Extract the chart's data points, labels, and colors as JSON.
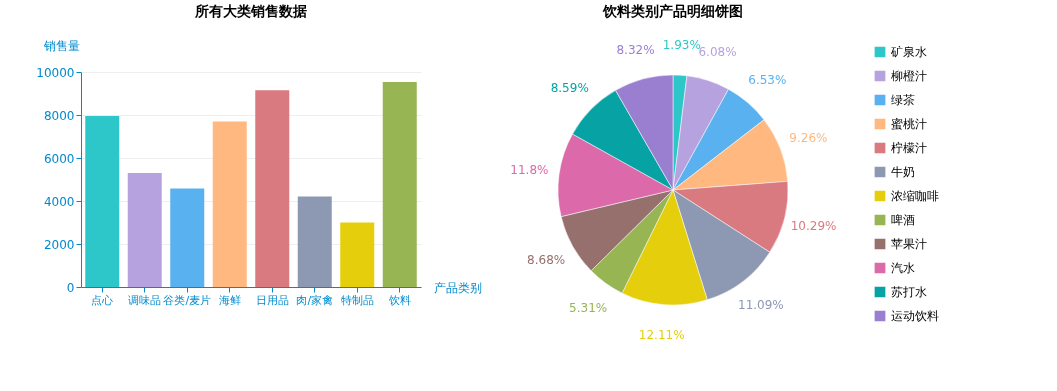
{
  "chart_data": [
    {
      "type": "bar",
      "title": "所有大类销售数据",
      "xlabel": "产品类别",
      "ylabel": "销售量",
      "categories": [
        "点心",
        "调味品",
        "谷类/麦片",
        "海鲜",
        "日用品",
        "肉/家禽",
        "特制品",
        "饮料"
      ],
      "values": [
        7950,
        5300,
        4580,
        7700,
        9150,
        4210,
        3000,
        9540
      ],
      "colors": [
        "#2ec7c9",
        "#b6a2de",
        "#5ab1ef",
        "#ffb980",
        "#d87a80",
        "#8d98b3",
        "#e5cf0d",
        "#97b552"
      ],
      "ylim": [
        0,
        10000
      ],
      "yticks": [
        0,
        2000,
        4000,
        6000,
        8000,
        10000
      ],
      "grid": "y"
    },
    {
      "type": "pie",
      "title": "饮料类别产品明细饼图",
      "categories": [
        "矿泉水",
        "柳橙汁",
        "绿茶",
        "蜜桃汁",
        "柠檬汁",
        "牛奶",
        "浓缩咖啡",
        "啤酒",
        "苹果汁",
        "汽水",
        "苏打水",
        "运动饮料"
      ],
      "values": [
        1.93,
        6.08,
        6.53,
        9.26,
        10.29,
        11.09,
        12.11,
        5.31,
        8.68,
        11.8,
        8.59,
        8.32
      ],
      "colors": [
        "#2ec7c9",
        "#b6a2de",
        "#5ab1ef",
        "#ffb980",
        "#d87a80",
        "#8d98b3",
        "#e5cf0d",
        "#97b552",
        "#95706d",
        "#dc69aa",
        "#07a2a4",
        "#9a7fd1"
      ],
      "value_labels": [
        "1.93%",
        "6.08%",
        "6.53%",
        "9.26%",
        "10.29%",
        "11.09%",
        "12.11%",
        "5.31%",
        "8.68%",
        "11.8%",
        "8.59%",
        "8.32%"
      ],
      "legend": "right"
    }
  ]
}
